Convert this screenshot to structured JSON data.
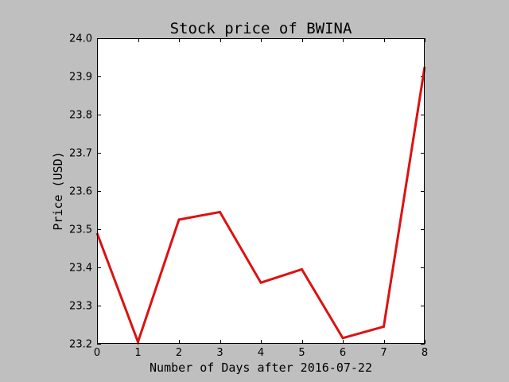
{
  "chart_data": {
    "type": "line",
    "title": "Stock price of BWINA",
    "xlabel": "Number of Days after 2016-07-22",
    "ylabel": "Price (USD)",
    "xlim": [
      0,
      8
    ],
    "ylim": [
      23.2,
      24.0
    ],
    "x_ticks": [
      0,
      1,
      2,
      3,
      4,
      5,
      6,
      7,
      8
    ],
    "y_ticks": [
      23.2,
      23.3,
      23.4,
      23.5,
      23.6,
      23.7,
      23.8,
      23.9,
      24.0
    ],
    "y_tick_labels": [
      "23.2",
      "23.3",
      "23.4",
      "23.5",
      "23.6",
      "23.7",
      "23.8",
      "23.9",
      "24.0"
    ],
    "grid": false,
    "legend": "none",
    "series": [
      {
        "x": [
          0,
          1,
          2,
          3,
          4,
          5,
          6,
          7,
          8
        ],
        "values": [
          23.49,
          23.205,
          23.525,
          23.545,
          23.36,
          23.395,
          23.215,
          23.245,
          23.925
        ],
        "color": "#dd1111"
      }
    ]
  },
  "colors": {
    "background": "#bfbfbf",
    "plot_area": "#ffffff",
    "line": "#dd1111"
  }
}
